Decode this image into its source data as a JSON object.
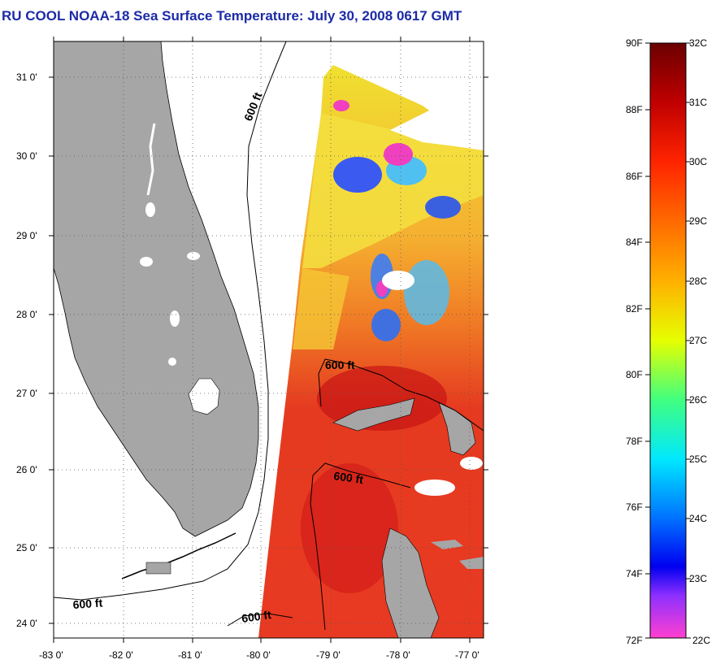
{
  "title": "RU COOL  NOAA-18  Sea Surface Temperature:  July 30, 2008 0617 GMT",
  "map": {
    "lat_labels": [
      "31 0'",
      "30 0'",
      "29 0'",
      "28 0'",
      "27 0'",
      "26 0'",
      "25 0'",
      "24 0'"
    ],
    "lon_labels": [
      "-83 0'",
      "-82 0'",
      "-81 0'",
      "-80 0'",
      "-79 0'",
      "-78 0'",
      "-77 0'"
    ],
    "contour_labels": [
      "600 ft",
      "600 ft",
      "600 ft",
      "600 ft",
      "600 ft"
    ],
    "colors": {
      "land": "#a6a6a6",
      "water_warm": "#e8321e",
      "water_cool": "#f2d02a"
    }
  },
  "colorbar": {
    "fahrenheit": [
      "90F",
      "88F",
      "86F",
      "84F",
      "82F",
      "80F",
      "78F",
      "76F",
      "74F",
      "72F"
    ],
    "celsius": [
      "32C",
      "31C",
      "30C",
      "29C",
      "28C",
      "27C",
      "26C",
      "25C",
      "24C",
      "23C",
      "22C"
    ],
    "gradient_colors": [
      "#6b0000",
      "#c00000",
      "#ff2000",
      "#ff7000",
      "#ffc000",
      "#ffff00",
      "#80ff40",
      "#00ffc0",
      "#00c0ff",
      "#0060ff",
      "#0000ff",
      "#a040ff",
      "#ff40d0"
    ]
  }
}
